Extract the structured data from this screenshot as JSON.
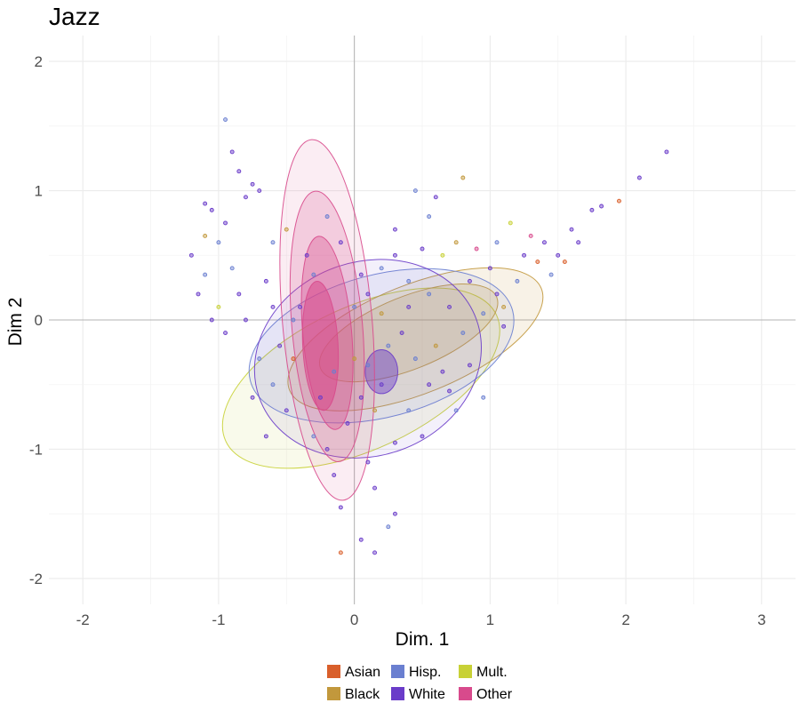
{
  "chart_data": {
    "type": "scatter",
    "title": "Jazz",
    "xlabel": "Dim. 1",
    "ylabel": "Dim 2",
    "xlim": [
      -2.25,
      3.25
    ],
    "ylim": [
      -2.2,
      2.2
    ],
    "x_ticks": [
      -2,
      -1,
      0,
      1,
      2,
      3
    ],
    "y_ticks": [
      -2,
      -1,
      0,
      1,
      2
    ],
    "grid": true,
    "zero_lines": true,
    "legend_position": "bottom",
    "series": [
      {
        "name": "Asian",
        "color": "#d95f2b"
      },
      {
        "name": "Black",
        "color": "#c2983c"
      },
      {
        "name": "Hisp.",
        "color": "#6a7fd0"
      },
      {
        "name": "White",
        "color": "#6a3cc9"
      },
      {
        "name": "Mult.",
        "color": "#c8d136"
      },
      {
        "name": "Other",
        "color": "#d84a8c"
      }
    ],
    "density_contours": [
      {
        "series": "Mult.",
        "levels": [
          {
            "cx": 0.05,
            "cy": -0.45,
            "rx": 1.1,
            "ry": 0.55,
            "rot": 25,
            "alpha": 0.1
          }
        ]
      },
      {
        "series": "Black",
        "levels": [
          {
            "cx": 0.45,
            "cy": -0.15,
            "rx": 1.0,
            "ry": 0.42,
            "rot": 22,
            "alpha": 0.12
          },
          {
            "cx": 0.4,
            "cy": -0.1,
            "rx": 0.7,
            "ry": 0.28,
            "rot": 22,
            "alpha": 0.18
          }
        ]
      },
      {
        "series": "Hisp.",
        "levels": [
          {
            "cx": 0.2,
            "cy": -0.2,
            "rx": 1.0,
            "ry": 0.55,
            "rot": 15,
            "alpha": 0.1
          }
        ]
      },
      {
        "series": "White",
        "levels": [
          {
            "cx": 0.1,
            "cy": -0.3,
            "rx": 0.85,
            "ry": 0.75,
            "rot": 20,
            "alpha": 0.08
          },
          {
            "cx": 0.2,
            "cy": -0.4,
            "rx": 0.12,
            "ry": 0.17,
            "rot": 0,
            "alpha": 0.45
          }
        ]
      },
      {
        "series": "Other",
        "levels": [
          {
            "cx": -0.2,
            "cy": 0.0,
            "rx": 0.33,
            "ry": 1.4,
            "rot": 5,
            "alpha": 0.1
          },
          {
            "cx": -0.2,
            "cy": -0.05,
            "rx": 0.26,
            "ry": 1.05,
            "rot": 5,
            "alpha": 0.2
          },
          {
            "cx": -0.2,
            "cy": -0.1,
            "rx": 0.18,
            "ry": 0.75,
            "rot": 5,
            "alpha": 0.35
          },
          {
            "cx": -0.25,
            "cy": -0.2,
            "rx": 0.13,
            "ry": 0.5,
            "rot": 3,
            "alpha": 0.55
          }
        ]
      }
    ],
    "points": [
      [
        -1.2,
        0.5,
        "White"
      ],
      [
        -1.15,
        0.2,
        "White"
      ],
      [
        -1.1,
        0.9,
        "White"
      ],
      [
        -1.05,
        0.85,
        "White"
      ],
      [
        -1.0,
        0.6,
        "Hisp."
      ],
      [
        -0.95,
        0.75,
        "White"
      ],
      [
        -0.95,
        1.55,
        "Hisp."
      ],
      [
        -0.9,
        1.3,
        "White"
      ],
      [
        -0.85,
        1.15,
        "White"
      ],
      [
        -0.8,
        0.95,
        "White"
      ],
      [
        -0.75,
        1.05,
        "White"
      ],
      [
        -0.7,
        1.0,
        "White"
      ],
      [
        -0.9,
        0.4,
        "Hisp."
      ],
      [
        -0.85,
        0.2,
        "White"
      ],
      [
        -0.8,
        0.0,
        "White"
      ],
      [
        -1.05,
        0.0,
        "White"
      ],
      [
        -0.95,
        -0.1,
        "White"
      ],
      [
        -1.1,
        0.35,
        "Hisp."
      ],
      [
        -0.6,
        0.6,
        "Hisp."
      ],
      [
        -0.65,
        0.3,
        "White"
      ],
      [
        -0.5,
        0.7,
        "Black"
      ],
      [
        -0.55,
        -0.2,
        "White"
      ],
      [
        -0.6,
        -0.5,
        "Hisp."
      ],
      [
        -0.5,
        -0.7,
        "White"
      ],
      [
        -0.45,
        -0.3,
        "Asian"
      ],
      [
        -0.4,
        0.1,
        "White"
      ],
      [
        -0.3,
        0.35,
        "Hisp."
      ],
      [
        -0.25,
        -0.6,
        "White"
      ],
      [
        -0.2,
        -1.0,
        "White"
      ],
      [
        -0.15,
        -1.2,
        "White"
      ],
      [
        -0.1,
        -1.45,
        "White"
      ],
      [
        -0.15,
        -0.4,
        "Hisp."
      ],
      [
        -0.05,
        -0.8,
        "White"
      ],
      [
        0.0,
        -0.3,
        "Black"
      ],
      [
        0.05,
        -0.6,
        "White"
      ],
      [
        0.1,
        -1.1,
        "White"
      ],
      [
        0.15,
        -1.3,
        "White"
      ],
      [
        0.05,
        -1.7,
        "White"
      ],
      [
        -0.1,
        -1.8,
        "Asian"
      ],
      [
        0.15,
        -1.8,
        "White"
      ],
      [
        0.25,
        -1.6,
        "Hisp."
      ],
      [
        0.3,
        -1.5,
        "White"
      ],
      [
        0.1,
        0.2,
        "White"
      ],
      [
        0.2,
        0.4,
        "Hisp."
      ],
      [
        0.3,
        0.5,
        "White"
      ],
      [
        0.4,
        0.3,
        "Hisp."
      ],
      [
        0.5,
        0.55,
        "White"
      ],
      [
        0.55,
        0.8,
        "Hisp."
      ],
      [
        0.6,
        0.95,
        "White"
      ],
      [
        0.45,
        1.0,
        "Hisp."
      ],
      [
        0.3,
        0.7,
        "White"
      ],
      [
        0.2,
        0.05,
        "Black"
      ],
      [
        0.35,
        -0.1,
        "White"
      ],
      [
        0.45,
        -0.3,
        "Hisp."
      ],
      [
        0.55,
        -0.5,
        "White"
      ],
      [
        0.6,
        -0.2,
        "Black"
      ],
      [
        0.7,
        0.1,
        "White"
      ],
      [
        0.75,
        0.6,
        "Black"
      ],
      [
        0.8,
        -0.1,
        "Hisp."
      ],
      [
        0.85,
        0.3,
        "White"
      ],
      [
        0.95,
        0.05,
        "Hisp."
      ],
      [
        1.0,
        0.4,
        "White"
      ],
      [
        1.05,
        0.6,
        "Hisp."
      ],
      [
        1.15,
        0.75,
        "Mult."
      ],
      [
        1.1,
        -0.05,
        "White"
      ],
      [
        1.2,
        0.3,
        "Hisp."
      ],
      [
        1.25,
        0.5,
        "White"
      ],
      [
        1.35,
        0.45,
        "Asian"
      ],
      [
        1.4,
        0.6,
        "White"
      ],
      [
        1.45,
        0.35,
        "Hisp."
      ],
      [
        1.5,
        0.5,
        "White"
      ],
      [
        1.55,
        0.45,
        "Asian"
      ],
      [
        1.6,
        0.7,
        "White"
      ],
      [
        1.65,
        0.6,
        "White"
      ],
      [
        1.75,
        0.85,
        "White"
      ],
      [
        1.82,
        0.88,
        "White"
      ],
      [
        1.95,
        0.92,
        "Asian"
      ],
      [
        2.1,
        1.1,
        "White"
      ],
      [
        2.3,
        1.3,
        "White"
      ],
      [
        0.9,
        0.55,
        "Other"
      ],
      [
        0.65,
        -0.4,
        "White"
      ],
      [
        0.75,
        -0.7,
        "Hisp."
      ],
      [
        0.5,
        -0.9,
        "White"
      ],
      [
        0.4,
        -0.7,
        "Hisp."
      ],
      [
        0.3,
        -0.95,
        "White"
      ],
      [
        0.2,
        -0.5,
        "White"
      ],
      [
        0.25,
        -0.2,
        "Hisp."
      ],
      [
        0.15,
        -0.7,
        "Black"
      ],
      [
        -0.3,
        -0.9,
        "Hisp."
      ],
      [
        -0.35,
        0.5,
        "White"
      ],
      [
        -0.6,
        0.1,
        "White"
      ],
      [
        -0.7,
        -0.3,
        "Hisp."
      ],
      [
        -0.75,
        -0.6,
        "White"
      ],
      [
        -0.65,
        -0.9,
        "White"
      ],
      [
        0.8,
        1.1,
        "Black"
      ],
      [
        0.65,
        0.5,
        "Mult."
      ],
      [
        0.95,
        -0.6,
        "Hisp."
      ],
      [
        1.05,
        0.2,
        "White"
      ],
      [
        0.0,
        0.1,
        "Hisp."
      ],
      [
        -0.1,
        0.6,
        "White"
      ],
      [
        -0.2,
        0.8,
        "Hisp."
      ],
      [
        0.05,
        0.35,
        "White"
      ],
      [
        0.4,
        0.1,
        "White"
      ],
      [
        0.55,
        0.2,
        "Hisp."
      ],
      [
        0.7,
        -0.55,
        "White"
      ],
      [
        0.85,
        -0.35,
        "White"
      ],
      [
        0.1,
        -0.35,
        "Hisp."
      ],
      [
        -0.45,
        0.0,
        "Hisp."
      ],
      [
        -1.0,
        0.1,
        "Mult."
      ],
      [
        -1.1,
        0.65,
        "Black"
      ],
      [
        1.3,
        0.65,
        "Other"
      ],
      [
        1.1,
        0.1,
        "Black"
      ]
    ]
  }
}
